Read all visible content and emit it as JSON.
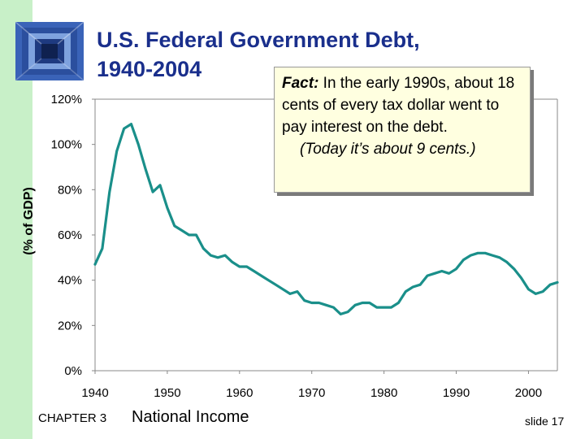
{
  "slide": {
    "title_line1": "U.S. Federal Government Debt,",
    "title_line2": "1940-2004",
    "fact_lead": "Fact:",
    "fact_text": " In the early 1990s, about 18 cents of every tax dollar went to pay interest on the debt.",
    "fact_note": "(Today it’s about 9 cents.)",
    "footer_chapter": "CHAPTER 3",
    "footer_topic": "National Income",
    "footer_slide": "slide 17",
    "logo_icon": "blue-square-tunnel-icon",
    "colors": {
      "line": "#1a8f8a",
      "title": "#1a2f8c",
      "side_band": "#c8f0c8",
      "fact_box": "#ffffe0"
    }
  },
  "chart_data": {
    "type": "line",
    "title": "",
    "xlabel": "",
    "ylabel": "(% of GDP)",
    "xlim": [
      1940,
      2004
    ],
    "ylim": [
      0,
      120
    ],
    "x_ticks": [
      1940,
      1950,
      1960,
      1970,
      1980,
      1990,
      2000
    ],
    "y_ticks": [
      0,
      20,
      40,
      60,
      80,
      100,
      120
    ],
    "y_tick_labels": [
      "0%",
      "20%",
      "40%",
      "60%",
      "80%",
      "100%",
      "120%"
    ],
    "grid": false,
    "series": [
      {
        "x": [
          1940,
          1941,
          1942,
          1943,
          1944,
          1945,
          1946,
          1947,
          1948,
          1949,
          1950,
          1951,
          1952,
          1953,
          1954,
          1955,
          1956,
          1957,
          1958,
          1959,
          1960,
          1961,
          1962,
          1963,
          1964,
          1965,
          1966,
          1967,
          1968,
          1969,
          1970,
          1971,
          1972,
          1973,
          1974,
          1975,
          1976,
          1977,
          1978,
          1979,
          1980,
          1981,
          1982,
          1983,
          1984,
          1985,
          1986,
          1987,
          1988,
          1989,
          1990,
          1991,
          1992,
          1993,
          1994,
          1995,
          1996,
          1997,
          1998,
          1999,
          2000,
          2001,
          2002,
          2003,
          2004
        ],
        "values": [
          47,
          54,
          79,
          97,
          107,
          109,
          100,
          89,
          79,
          82,
          72,
          64,
          62,
          60,
          60,
          54,
          51,
          50,
          51,
          48,
          46,
          46,
          44,
          42,
          40,
          38,
          36,
          34,
          35,
          31,
          30,
          30,
          29,
          28,
          25,
          26,
          29,
          30,
          30,
          28,
          28,
          28,
          30,
          35,
          37,
          38,
          42,
          43,
          44,
          43,
          45,
          49,
          51,
          52,
          52,
          51,
          50,
          48,
          45,
          41,
          36,
          34,
          35,
          38,
          39
        ]
      }
    ]
  }
}
